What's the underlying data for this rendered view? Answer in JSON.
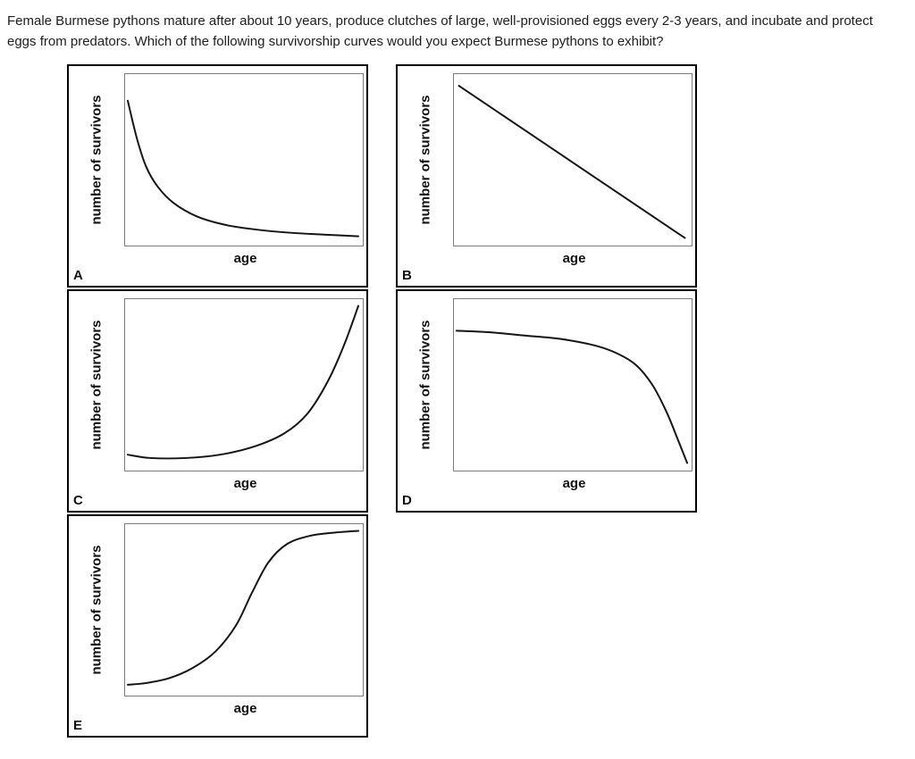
{
  "question": {
    "text": "Female Burmese pythons mature after about 10 years, produce clutches of large, well-provisioned eggs every 2-3 years, and incubate and protect eggs from predators. Which of the following survivorship curves would you expect Burmese pythons to exhibit?"
  },
  "axes": {
    "x_label": "age",
    "y_label": "number of survivors"
  },
  "chart_data": [
    {
      "panel_label": "A",
      "type": "line",
      "xlabel": "age",
      "ylabel": "number of survivors",
      "shape": "concave-up decreasing; steep early drop then long low tail (Type III survivorship)",
      "x_range": [
        0,
        100
      ],
      "y_range": [
        0,
        100
      ],
      "x": [
        0,
        4,
        8,
        13,
        20,
        30,
        42,
        56,
        72,
        86,
        100
      ],
      "y": [
        85,
        62,
        45,
        33,
        23,
        15,
        10,
        7,
        5,
        4,
        3
      ]
    },
    {
      "panel_label": "B",
      "type": "line",
      "xlabel": "age",
      "ylabel": "number of survivors",
      "shape": "straight diagonal decline from upper left to lower right (Type II survivorship)",
      "x_range": [
        0,
        100
      ],
      "y_range": [
        0,
        100
      ],
      "x": [
        1,
        99
      ],
      "y": [
        94,
        2
      ]
    },
    {
      "panel_label": "C",
      "type": "line",
      "xlabel": "age",
      "ylabel": "number of survivors",
      "shape": "low and flat at first, then accelerating upward to top right (exponential increase)",
      "x_range": [
        0,
        100
      ],
      "y_range": [
        0,
        100
      ],
      "x": [
        0,
        10,
        25,
        40,
        55,
        68,
        78,
        87,
        94,
        100
      ],
      "y": [
        7,
        5,
        5,
        7,
        12,
        20,
        32,
        52,
        74,
        97
      ]
    },
    {
      "panel_label": "D",
      "type": "line",
      "xlabel": "age",
      "ylabel": "number of survivors",
      "shape": "high and nearly flat, then steep plunge at old age (Type I survivorship)",
      "x_range": [
        0,
        100
      ],
      "y_range": [
        0,
        100
      ],
      "x": [
        0,
        15,
        30,
        45,
        60,
        70,
        78,
        85,
        91,
        96,
        100
      ],
      "y": [
        82,
        81,
        79,
        77,
        73,
        68,
        61,
        49,
        33,
        16,
        2
      ]
    },
    {
      "panel_label": "E",
      "type": "line",
      "xlabel": "age",
      "ylabel": "number of survivors",
      "shape": "sigmoid increase: low start, steep middle rise, high plateau (logistic curve)",
      "x_range": [
        0,
        100
      ],
      "y_range": [
        0,
        100
      ],
      "x": [
        0,
        8,
        18,
        28,
        38,
        47,
        54,
        61,
        69,
        79,
        90,
        100
      ],
      "y": [
        4,
        5,
        8,
        14,
        24,
        40,
        60,
        78,
        89,
        94,
        96,
        97
      ]
    }
  ]
}
